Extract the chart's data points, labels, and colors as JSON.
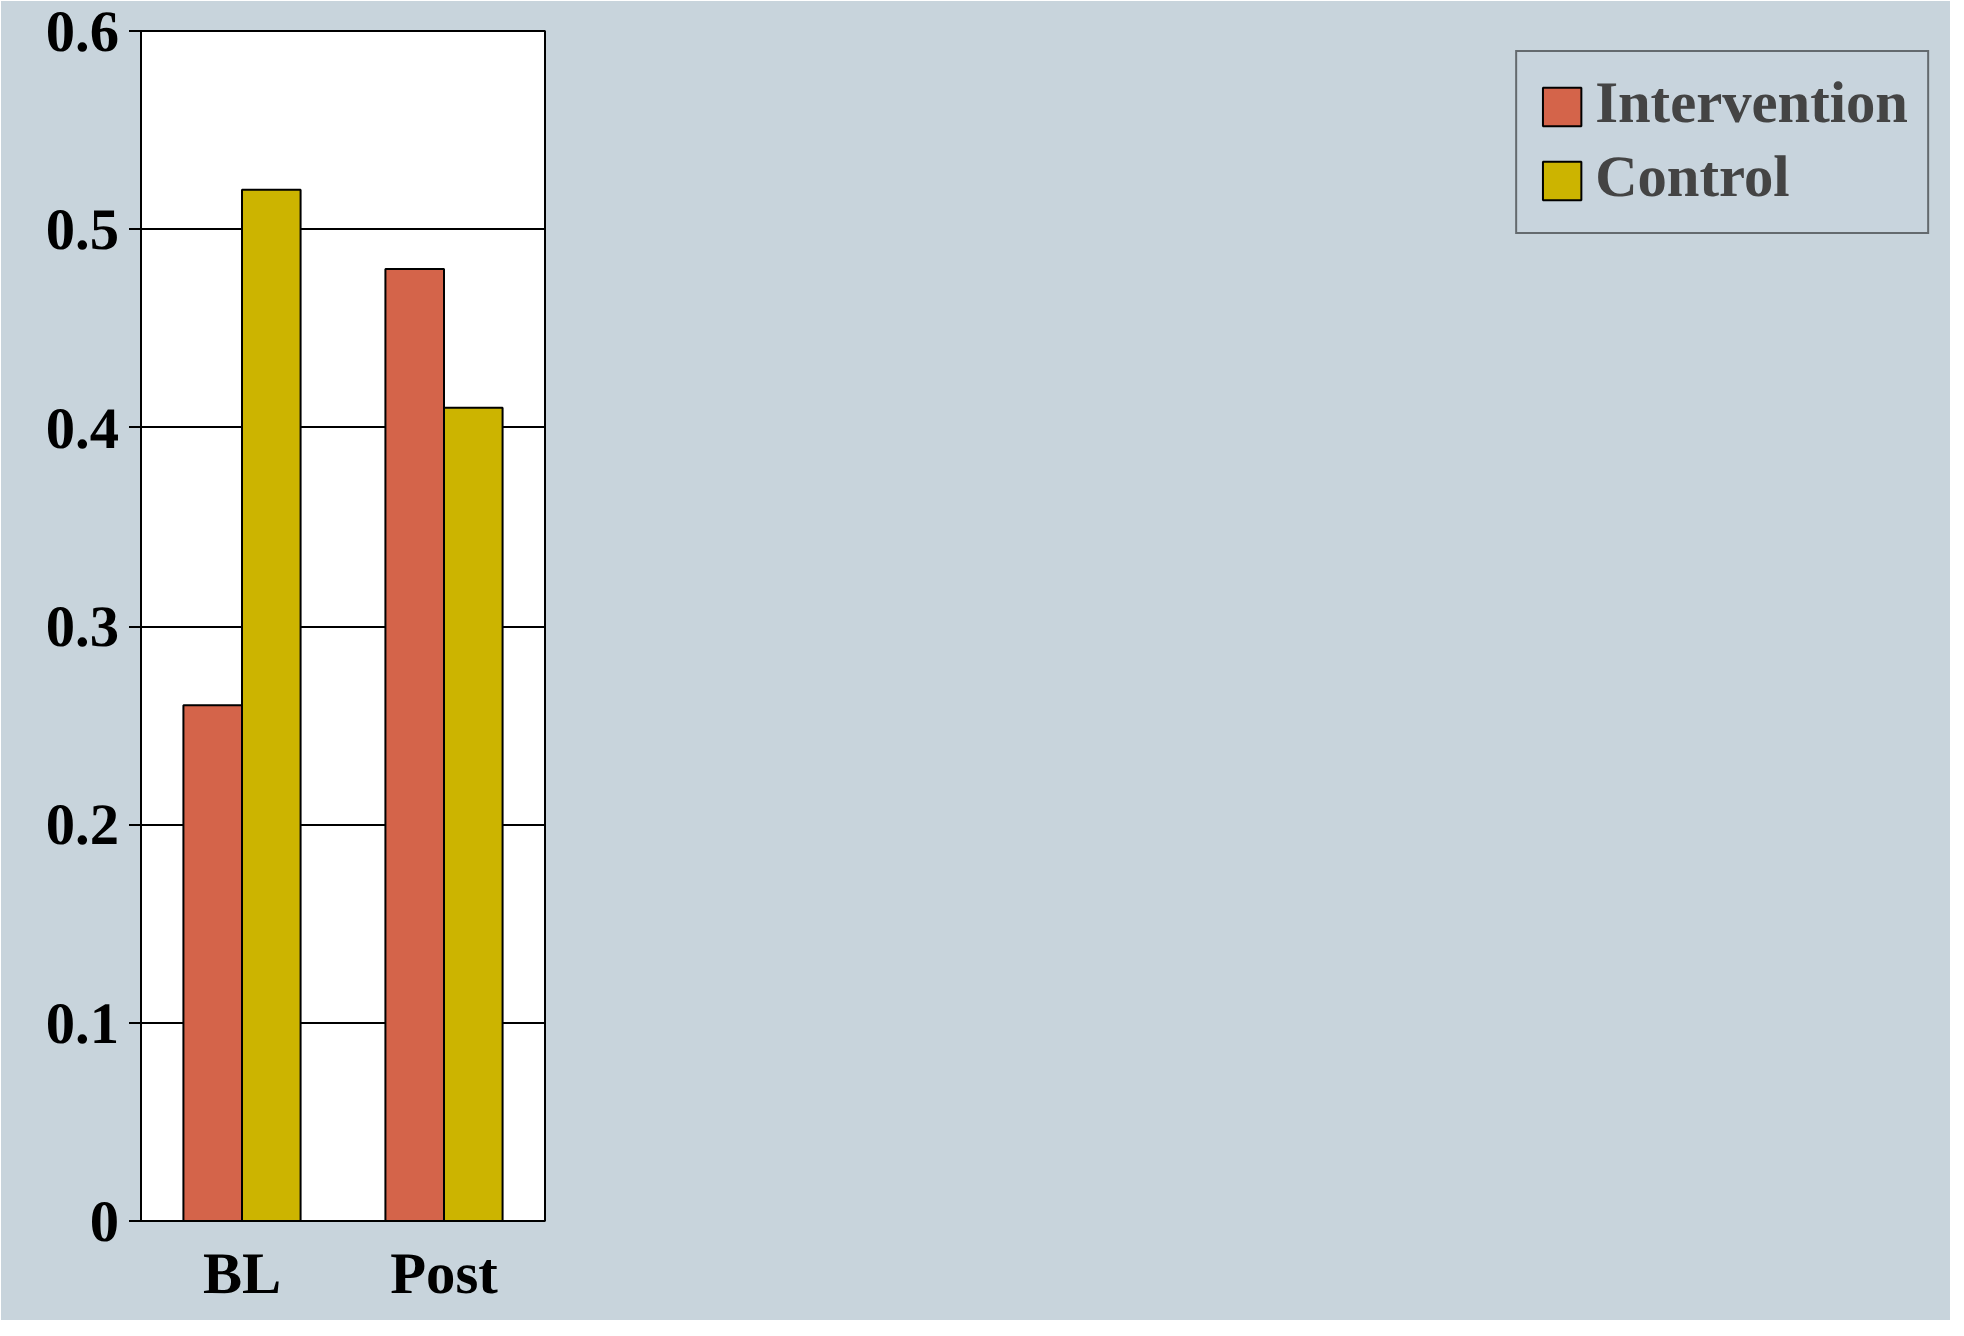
{
  "chart_data": {
    "type": "bar",
    "categories": [
      "BL",
      "Post"
    ],
    "series": [
      {
        "name": "Intervention",
        "color": "#d4644a",
        "values": [
          0.26,
          0.48
        ]
      },
      {
        "name": "Control",
        "color": "#ccb400",
        "values": [
          0.52,
          0.41
        ]
      }
    ],
    "ylim": [
      0,
      0.6
    ],
    "yticks": [
      {
        "value": 0,
        "label": "0"
      },
      0.1,
      0.2,
      0.3,
      0.4,
      0.5,
      0.6
    ],
    "grid": "y",
    "legend": "right"
  }
}
